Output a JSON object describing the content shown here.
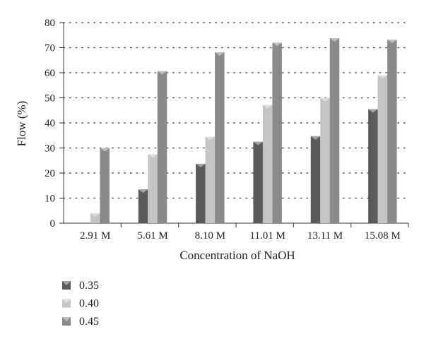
{
  "chart_data": {
    "type": "bar",
    "categories": [
      "2.91 M",
      "5.61 M",
      "8.10 M",
      "11.01 M",
      "13.11 M",
      "15.08 M"
    ],
    "series": [
      {
        "name": "0.35",
        "values": [
          0,
          13.5,
          23.7,
          32.5,
          34.7,
          45.5
        ]
      },
      {
        "name": "0.40",
        "values": [
          4,
          27.5,
          34.5,
          47.2,
          50,
          59
        ]
      },
      {
        "name": "0.45",
        "values": [
          30,
          60.7,
          68.2,
          72,
          73.8,
          73.2
        ]
      }
    ],
    "xlabel": "Concentration of NaOH",
    "ylabel": "Flow (%)",
    "ylim": [
      0,
      80
    ],
    "yticks": [
      0,
      10,
      20,
      30,
      40,
      50,
      60,
      70,
      80
    ],
    "grid": true,
    "legend_position": "bottom-left",
    "colors": {
      "0.35": "#5a5a5a",
      "0.40": "#c4c4c4",
      "0.45": "#8a8a8a"
    }
  }
}
